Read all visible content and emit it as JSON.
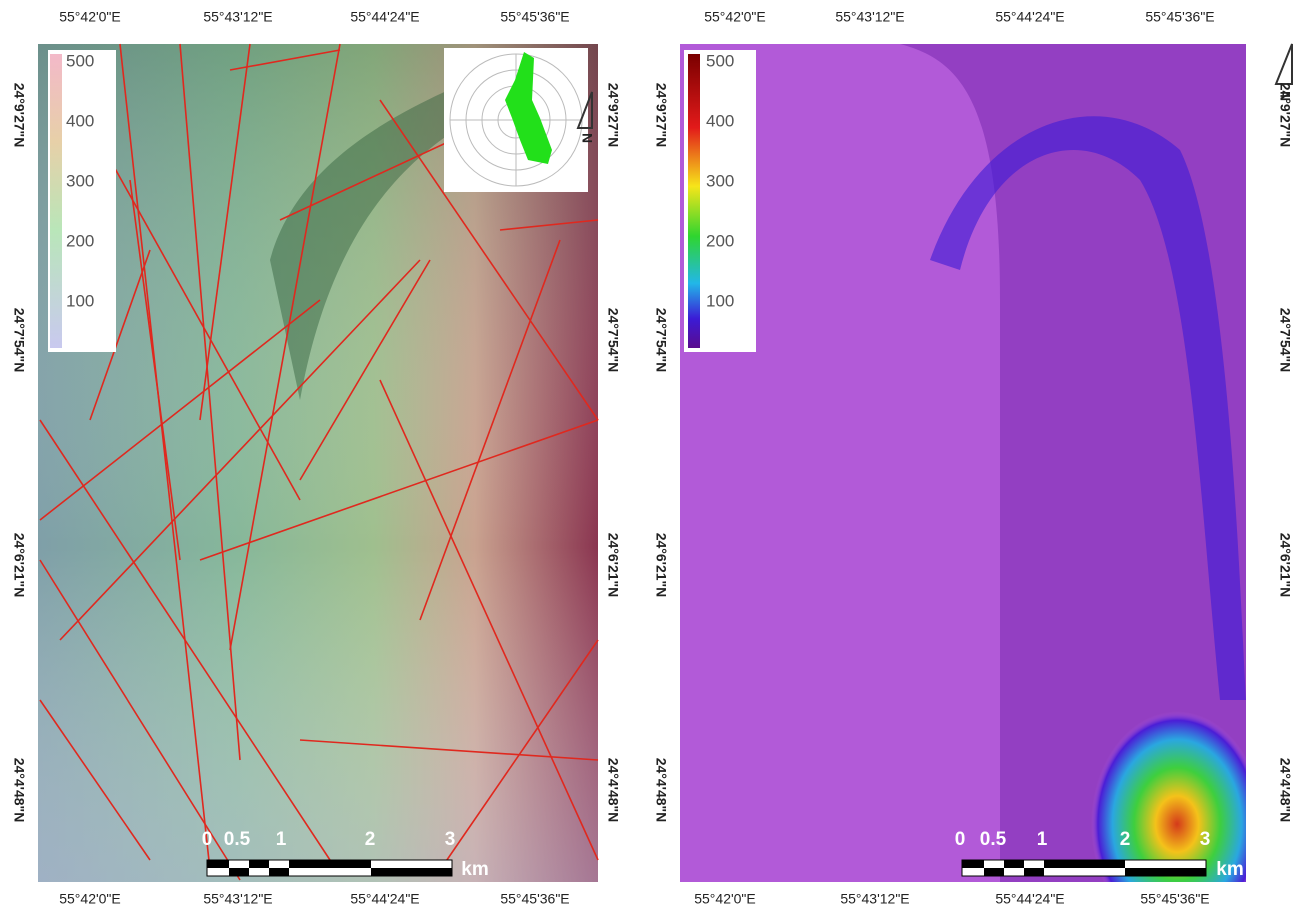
{
  "panels": [
    {
      "x_labels_top": [
        "55°42'0\"E",
        "55°43'12\"E",
        "55°44'24\"E",
        "55°45'36\"E"
      ],
      "x_labels_bottom": [
        "55°42'0\"E",
        "55°43'12\"E",
        "55°44'24\"E",
        "55°45'36\"E"
      ],
      "y_labels_left": [
        "24°9'27\"N",
        "24°7'54\"N",
        "24°6'21\"N",
        "24°4'48\"N"
      ],
      "y_labels_right": [
        "24°9'27\"N",
        "24°7'54\"N",
        "24°6'21\"N",
        "24°4'48\"N"
      ],
      "legend_ticks": [
        "500",
        "400",
        "300",
        "200",
        "100"
      ],
      "scale_bar": {
        "labels": [
          "0",
          "0.5",
          "1",
          "2",
          "3"
        ],
        "unit": "km"
      }
    },
    {
      "x_labels_top": [
        "55°42'0\"E",
        "55°43'12\"E",
        "55°44'24\"E",
        "55°45'36\"E"
      ],
      "x_labels_bottom": [
        "55°42'0\"E",
        "55°43'12\"E",
        "55°44'24\"E",
        "55°45'36\"E"
      ],
      "y_labels_left": [
        "24°9'27\"N",
        "24°7'54\"N",
        "24°6'21\"N",
        "24°4'48\"N"
      ],
      "y_labels_right": [
        "24°9'27\"N",
        "24°7'54\"N",
        "24°6'21\"N",
        "24°4'48\"N"
      ],
      "legend_ticks": [
        "500",
        "400",
        "300",
        "200",
        "100"
      ],
      "scale_bar": {
        "labels": [
          "0",
          "0.5",
          "1",
          "2",
          "3"
        ],
        "unit": "km"
      }
    }
  ],
  "north_labels": [
    "N",
    "N"
  ]
}
